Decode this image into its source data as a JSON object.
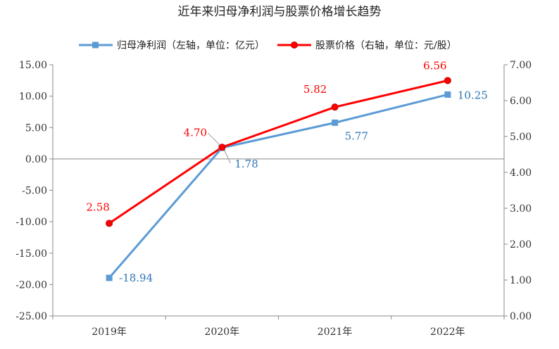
{
  "chart_data": {
    "type": "line",
    "title": "近年来归母净利润与股票价格增长趋势",
    "categories": [
      "2019年",
      "2020年",
      "2021年",
      "2022年"
    ],
    "series": [
      {
        "name": "归母净利润（左轴，单位：亿元）",
        "axis": "left",
        "color": "#5B9BD5",
        "marker": "square",
        "values": [
          -18.94,
          1.78,
          5.77,
          10.25
        ],
        "labels": [
          "-18.94",
          "1.78",
          "5.77",
          "10.25"
        ]
      },
      {
        "name": "股票价格（右轴，单位：元/股）",
        "axis": "right",
        "color": "#FF0000",
        "marker": "circle",
        "values": [
          2.58,
          4.7,
          5.82,
          6.56
        ],
        "labels": [
          "2.58",
          "4.70",
          "5.82",
          "6.56"
        ]
      }
    ],
    "y_left": {
      "ylim": [
        -25,
        15
      ],
      "ticks": [
        "15.00",
        "10.00",
        "5.00",
        "0.00",
        "-5.00",
        "-10.00",
        "-15.00",
        "-20.00",
        "-25.00"
      ]
    },
    "y_right": {
      "ylim": [
        0,
        7
      ],
      "ticks": [
        "7.00",
        "6.00",
        "5.00",
        "4.00",
        "3.00",
        "2.00",
        "1.00",
        "0.00"
      ]
    },
    "legend": "top",
    "grid": false,
    "label_colors": {
      "left": "#2E75B6",
      "right": "#FF0000"
    }
  }
}
